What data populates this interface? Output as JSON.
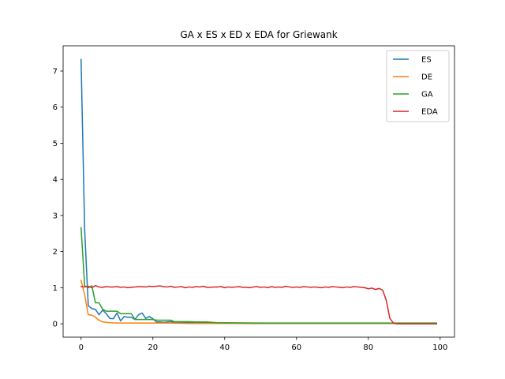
{
  "chart_data": {
    "type": "line",
    "title": "GA x ES x ED x EDA for Griewank",
    "xlabel": "",
    "ylabel": "",
    "xlim": [
      -5,
      104
    ],
    "ylim": [
      -0.37,
      7.7
    ],
    "xticks": [
      0,
      20,
      40,
      60,
      80,
      100
    ],
    "yticks": [
      0,
      1,
      2,
      3,
      4,
      5,
      6,
      7
    ],
    "grid": false,
    "legend": "top-right",
    "series": [
      {
        "name": "ES",
        "color": "#1f77b4",
        "x": [
          0,
          1,
          2,
          3,
          4,
          5,
          6,
          7,
          8,
          9,
          10,
          11,
          12,
          13,
          14,
          15,
          16,
          17,
          18,
          19,
          20,
          21,
          22,
          23,
          24,
          25,
          26,
          27,
          28,
          29,
          30,
          35,
          40,
          50,
          60,
          70,
          80,
          85,
          90,
          99
        ],
        "y": [
          7.32,
          2.6,
          0.5,
          0.42,
          0.4,
          0.25,
          0.38,
          0.28,
          0.15,
          0.14,
          0.3,
          0.08,
          0.2,
          0.18,
          0.18,
          0.12,
          0.25,
          0.3,
          0.15,
          0.2,
          0.14,
          0.05,
          0.05,
          0.04,
          0.05,
          0.06,
          0.04,
          0.04,
          0.04,
          0.04,
          0.03,
          0.03,
          0.02,
          0.01,
          0.01,
          0.01,
          0.01,
          0.01,
          0.01,
          0.01
        ]
      },
      {
        "name": "DE",
        "color": "#ff7f0e",
        "x": [
          0,
          1,
          2,
          3,
          4,
          5,
          6,
          8,
          10,
          12,
          14,
          16,
          18,
          20,
          25,
          30,
          40,
          50,
          60,
          70,
          80,
          90,
          99
        ],
        "y": [
          1.2,
          0.8,
          0.25,
          0.24,
          0.18,
          0.1,
          0.05,
          0.03,
          0.02,
          0.02,
          0.02,
          0.02,
          0.02,
          0.02,
          0.02,
          0.01,
          0.01,
          0.01,
          0.01,
          0.01,
          0.01,
          0.01,
          0.01
        ]
      },
      {
        "name": "GA",
        "color": "#2ca02c",
        "x": [
          0,
          1,
          2,
          3,
          4,
          5,
          6,
          7,
          8,
          9,
          10,
          11,
          12,
          13,
          14,
          15,
          16,
          18,
          20,
          21,
          22,
          23,
          24,
          25,
          26,
          28,
          30,
          32,
          35,
          38,
          40,
          50,
          60,
          70,
          80,
          90,
          99
        ],
        "y": [
          2.66,
          1.05,
          1.0,
          1.05,
          0.58,
          0.58,
          0.4,
          0.35,
          0.35,
          0.35,
          0.35,
          0.28,
          0.28,
          0.28,
          0.28,
          0.12,
          0.12,
          0.12,
          0.12,
          0.1,
          0.1,
          0.1,
          0.1,
          0.1,
          0.06,
          0.06,
          0.06,
          0.05,
          0.05,
          0.03,
          0.03,
          0.02,
          0.02,
          0.02,
          0.02,
          0.02,
          0.02
        ]
      },
      {
        "name": "EDA",
        "color": "#d62728",
        "x": [
          0,
          1,
          2,
          3,
          4,
          5,
          6,
          7,
          8,
          9,
          10,
          11,
          12,
          13,
          14,
          15,
          16,
          17,
          18,
          19,
          20,
          21,
          22,
          23,
          24,
          25,
          26,
          27,
          28,
          29,
          30,
          31,
          32,
          33,
          34,
          35,
          36,
          37,
          38,
          39,
          40,
          41,
          42,
          43,
          44,
          45,
          46,
          47,
          48,
          49,
          50,
          51,
          52,
          53,
          54,
          55,
          56,
          57,
          58,
          59,
          60,
          61,
          62,
          63,
          64,
          65,
          66,
          67,
          68,
          69,
          70,
          71,
          72,
          73,
          74,
          75,
          76,
          77,
          78,
          79,
          80,
          81,
          82,
          83,
          84,
          85,
          86,
          87,
          88,
          89,
          90,
          92,
          95,
          99
        ],
        "y": [
          1.03,
          1.02,
          1.04,
          1.0,
          1.06,
          1.02,
          1.01,
          1.03,
          1.02,
          1.02,
          1.03,
          1.01,
          1.02,
          1.0,
          1.01,
          1.02,
          1.03,
          1.03,
          1.02,
          1.04,
          1.03,
          1.04,
          1.05,
          1.03,
          1.02,
          1.04,
          1.01,
          1.02,
          1.03,
          1.0,
          1.02,
          1.01,
          1.03,
          1.02,
          1.04,
          1.01,
          1.01,
          1.02,
          1.02,
          1.03,
          1.0,
          1.02,
          1.01,
          1.02,
          1.03,
          1.01,
          1.01,
          1.0,
          1.02,
          1.03,
          1.01,
          1.02,
          1.0,
          1.03,
          1.01,
          1.02,
          1.01,
          1.04,
          1.02,
          1.01,
          1.02,
          1.01,
          1.03,
          1.02,
          1.01,
          1.02,
          1.01,
          1.0,
          1.02,
          1.01,
          1.03,
          1.02,
          1.01,
          1.0,
          1.02,
          1.01,
          1.03,
          1.02,
          1.01,
          1.0,
          0.97,
          0.99,
          0.95,
          0.98,
          0.93,
          0.65,
          0.15,
          0.02,
          0.0,
          0.0,
          0.0,
          0.0,
          0.0,
          0.0
        ]
      }
    ]
  }
}
